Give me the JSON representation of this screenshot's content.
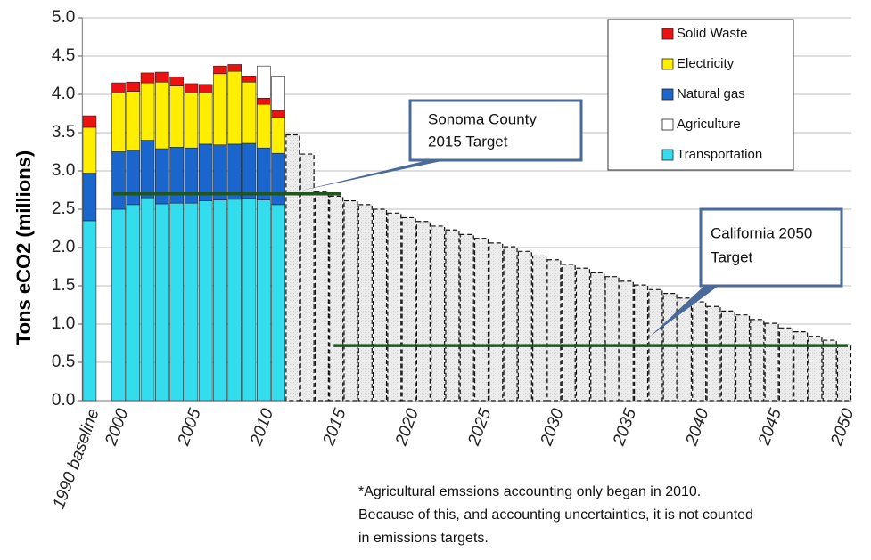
{
  "chart_data": {
    "type": "stacked_bar",
    "y_label": "Tons eCO2 (millions)",
    "categories": [
      "1990 baseline",
      null,
      "2000",
      null,
      null,
      null,
      null,
      "2005",
      null,
      null,
      null,
      null,
      "2010",
      null,
      null,
      null,
      null,
      "2015",
      null,
      null,
      null,
      null,
      "2020",
      null,
      null,
      null,
      null,
      "2025",
      null,
      null,
      null,
      null,
      "2030",
      null,
      null,
      null,
      null,
      "2035",
      null,
      null,
      null,
      null,
      "2040",
      null,
      null,
      null,
      null,
      "2045",
      null,
      null,
      null,
      null,
      "2050"
    ],
    "series": [
      {
        "name": "Transportation",
        "color": "#33ddee",
        "values": [
          2.35,
          null,
          2.5,
          2.56,
          2.65,
          2.57,
          2.58,
          2.58,
          2.61,
          2.62,
          2.63,
          2.64,
          2.62,
          2.56,
          null,
          null,
          null,
          null,
          null,
          null,
          null,
          null,
          null,
          null,
          null,
          null,
          null,
          null,
          null,
          null,
          null,
          null,
          null,
          null,
          null,
          null,
          null,
          null,
          null,
          null,
          null,
          null,
          null,
          null,
          null,
          null,
          null,
          null,
          null,
          null,
          null,
          null,
          null
        ]
      },
      {
        "name": "Natural gas",
        "color": "#1a66cc",
        "values": [
          0.62,
          null,
          0.75,
          0.71,
          0.75,
          0.72,
          0.73,
          0.72,
          0.74,
          0.72,
          0.72,
          0.72,
          0.68,
          0.67,
          null,
          null,
          null,
          null,
          null,
          null,
          null,
          null,
          null,
          null,
          null,
          null,
          null,
          null,
          null,
          null,
          null,
          null,
          null,
          null,
          null,
          null,
          null,
          null,
          null,
          null,
          null,
          null,
          null,
          null,
          null,
          null,
          null,
          null,
          null,
          null,
          null,
          null,
          null
        ]
      },
      {
        "name": "Electricity",
        "color": "#ffee00",
        "values": [
          0.6,
          null,
          0.77,
          0.77,
          0.75,
          0.87,
          0.8,
          0.72,
          0.67,
          0.93,
          0.95,
          0.8,
          0.57,
          0.47,
          null,
          null,
          null,
          null,
          null,
          null,
          null,
          null,
          null,
          null,
          null,
          null,
          null,
          null,
          null,
          null,
          null,
          null,
          null,
          null,
          null,
          null,
          null,
          null,
          null,
          null,
          null,
          null,
          null,
          null,
          null,
          null,
          null,
          null,
          null,
          null,
          null,
          null,
          null
        ]
      },
      {
        "name": "Solid Waste",
        "color": "#ee1111",
        "values": [
          0.15,
          null,
          0.13,
          0.12,
          0.13,
          0.13,
          0.12,
          0.12,
          0.11,
          0.1,
          0.09,
          0.08,
          0.08,
          0.09,
          null,
          null,
          null,
          null,
          null,
          null,
          null,
          null,
          null,
          null,
          null,
          null,
          null,
          null,
          null,
          null,
          null,
          null,
          null,
          null,
          null,
          null,
          null,
          null,
          null,
          null,
          null,
          null,
          null,
          null,
          null,
          null,
          null,
          null,
          null,
          null,
          null,
          null,
          null
        ]
      },
      {
        "name": "Agriculture",
        "color": "#ffffff",
        "values": [
          null,
          null,
          null,
          null,
          null,
          null,
          null,
          null,
          null,
          null,
          null,
          null,
          0.42,
          0.45,
          null,
          null,
          null,
          null,
          null,
          null,
          null,
          null,
          null,
          null,
          null,
          null,
          null,
          null,
          null,
          null,
          null,
          null,
          null,
          null,
          null,
          null,
          null,
          null,
          null,
          null,
          null,
          null,
          null,
          null,
          null,
          null,
          null,
          null,
          null,
          null,
          null,
          null,
          null
        ]
      },
      {
        "color": "#e6e6e6",
        "style": "dashed",
        "values": [
          null,
          null,
          null,
          null,
          null,
          null,
          null,
          null,
          null,
          null,
          null,
          null,
          null,
          null,
          3.47,
          3.22,
          2.73,
          2.67,
          2.61,
          2.56,
          2.5,
          2.45,
          2.39,
          2.34,
          2.28,
          2.23,
          2.17,
          2.12,
          2.06,
          2.01,
          1.95,
          1.89,
          1.84,
          1.78,
          1.73,
          1.67,
          1.62,
          1.56,
          1.51,
          1.45,
          1.4,
          1.34,
          1.29,
          1.23,
          1.17,
          1.12,
          1.06,
          1.01,
          0.95,
          0.9,
          0.84,
          0.79,
          0.73
        ]
      }
    ],
    "legend_order": [
      3,
      2,
      1,
      4,
      0
    ],
    "ylim": [
      0,
      5
    ],
    "yticks": [
      {
        "value": 0,
        "label": "0.0"
      },
      0.5,
      {
        "value": 1,
        "label": "1.0"
      },
      1.5,
      {
        "value": 2,
        "label": "2.0"
      },
      2.5,
      {
        "value": 3,
        "label": "3.0"
      },
      3.5,
      {
        "value": 4,
        "label": "4.0"
      },
      4.5,
      {
        "value": 5,
        "label": "5.0"
      }
    ],
    "grid": true,
    "annotations": [
      {
        "text": [
          "Sonoma County",
          "2015 Target"
        ],
        "value": 2.7,
        "color": "#1e561e"
      },
      {
        "text": [
          "California 2050",
          "Target"
        ],
        "value": 0.72,
        "color": "#1e561e"
      }
    ],
    "footnote": [
      "*Agricultural emssions accounting only began in 2010.",
      "Because of this, and accounting uncertainties, it is not counted",
      "in emissions targets."
    ]
  }
}
